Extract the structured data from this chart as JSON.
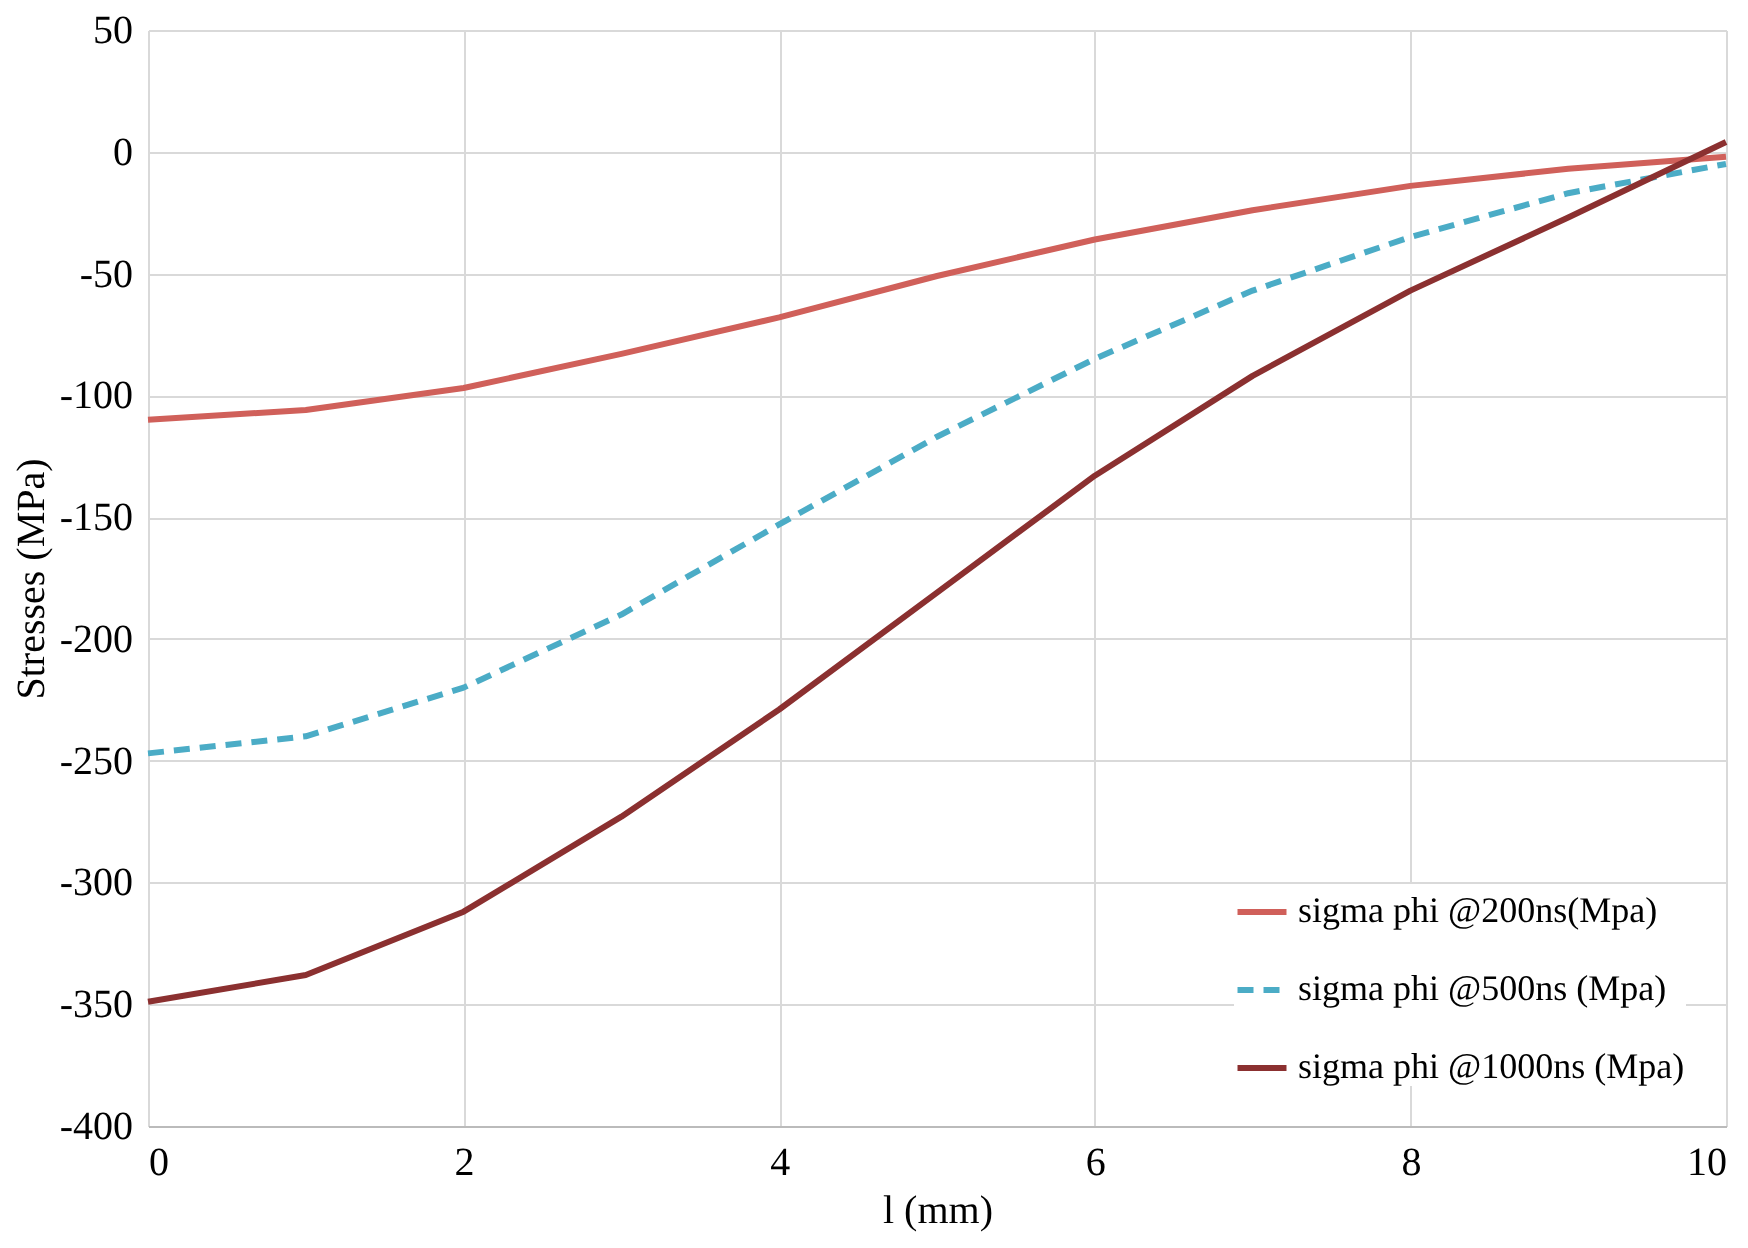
{
  "chart_data": {
    "type": "line",
    "xlabel": "l (mm)",
    "ylabel": "Stresses (MPa)",
    "x": [
      0,
      1,
      2,
      3,
      4,
      5,
      6,
      7,
      8,
      9,
      10
    ],
    "series": [
      {
        "name": "sigma phi @200ns(Mpa)",
        "color": "#d0605a",
        "line_style": "solid",
        "values": [
          -110,
          -106,
          -97,
          -83,
          -68,
          -51,
          -36,
          -24,
          -14,
          -7,
          -2
        ]
      },
      {
        "name": "sigma phi @500ns (Mpa)",
        "color": "#4bacc6",
        "line_style": "dashed",
        "values": [
          -247,
          -240,
          -220,
          -190,
          -153,
          -117,
          -85,
          -57,
          -35,
          -17,
          -5
        ]
      },
      {
        "name": "sigma phi @1000ns (Mpa)",
        "color": "#8b3030",
        "line_style": "solid",
        "values": [
          -349,
          -338,
          -312,
          -273,
          -229,
          -181,
          -133,
          -92,
          -57,
          -27,
          4
        ]
      }
    ],
    "xlim": [
      0,
      10
    ],
    "xticks": [
      0,
      2,
      4,
      6,
      8,
      10
    ],
    "ylim": [
      -400,
      50
    ],
    "yticks": [
      -400,
      -350,
      -300,
      -250,
      -200,
      -150,
      -100,
      -50,
      0,
      50
    ],
    "grid": true,
    "legend": "bottom right",
    "marker": "none"
  }
}
